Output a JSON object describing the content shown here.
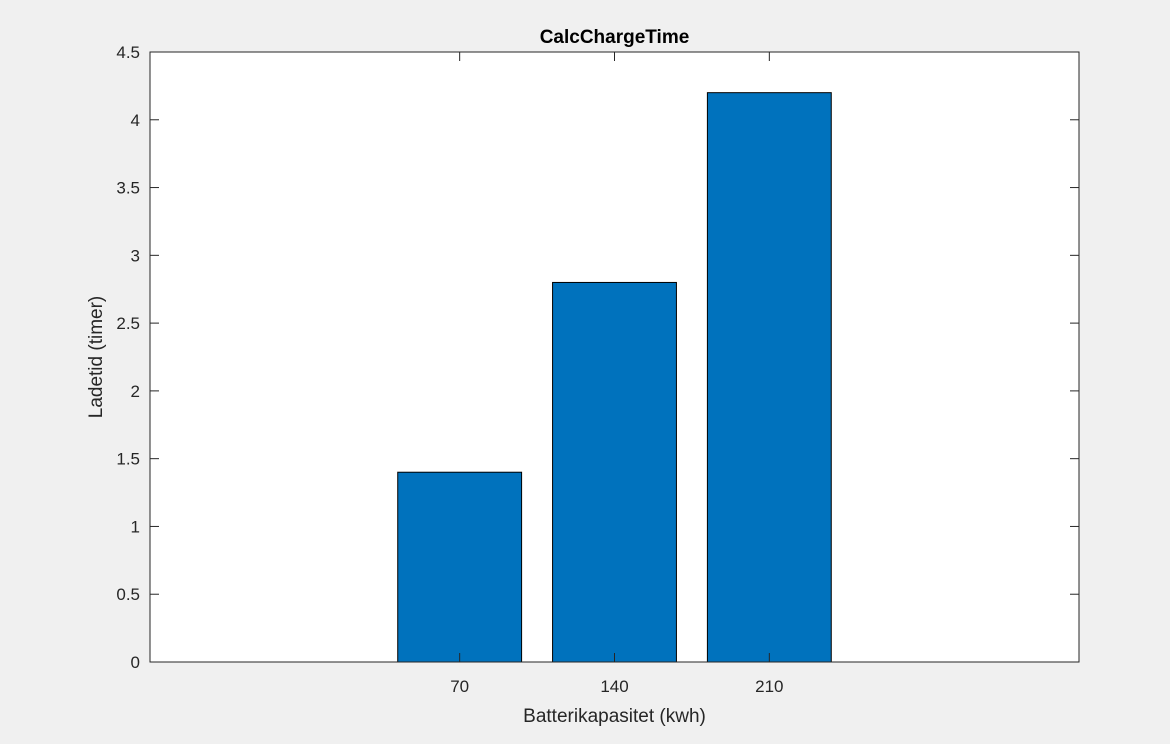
{
  "chart_data": {
    "type": "bar",
    "title": "CalcChargeTime",
    "xlabel": "Batterikapasitet (kwh)",
    "ylabel": "Ladetid (timer)",
    "categories": [
      "70",
      "140",
      "210"
    ],
    "values": [
      1.4,
      2.8,
      4.2
    ],
    "ylim": [
      0,
      4.5
    ],
    "yticks": [
      "0",
      "0.5",
      "1",
      "1.5",
      "2",
      "2.5",
      "3",
      "3.5",
      "4",
      "4.5"
    ],
    "grid": false,
    "legend": "none",
    "bar_color": "#0072bd"
  }
}
